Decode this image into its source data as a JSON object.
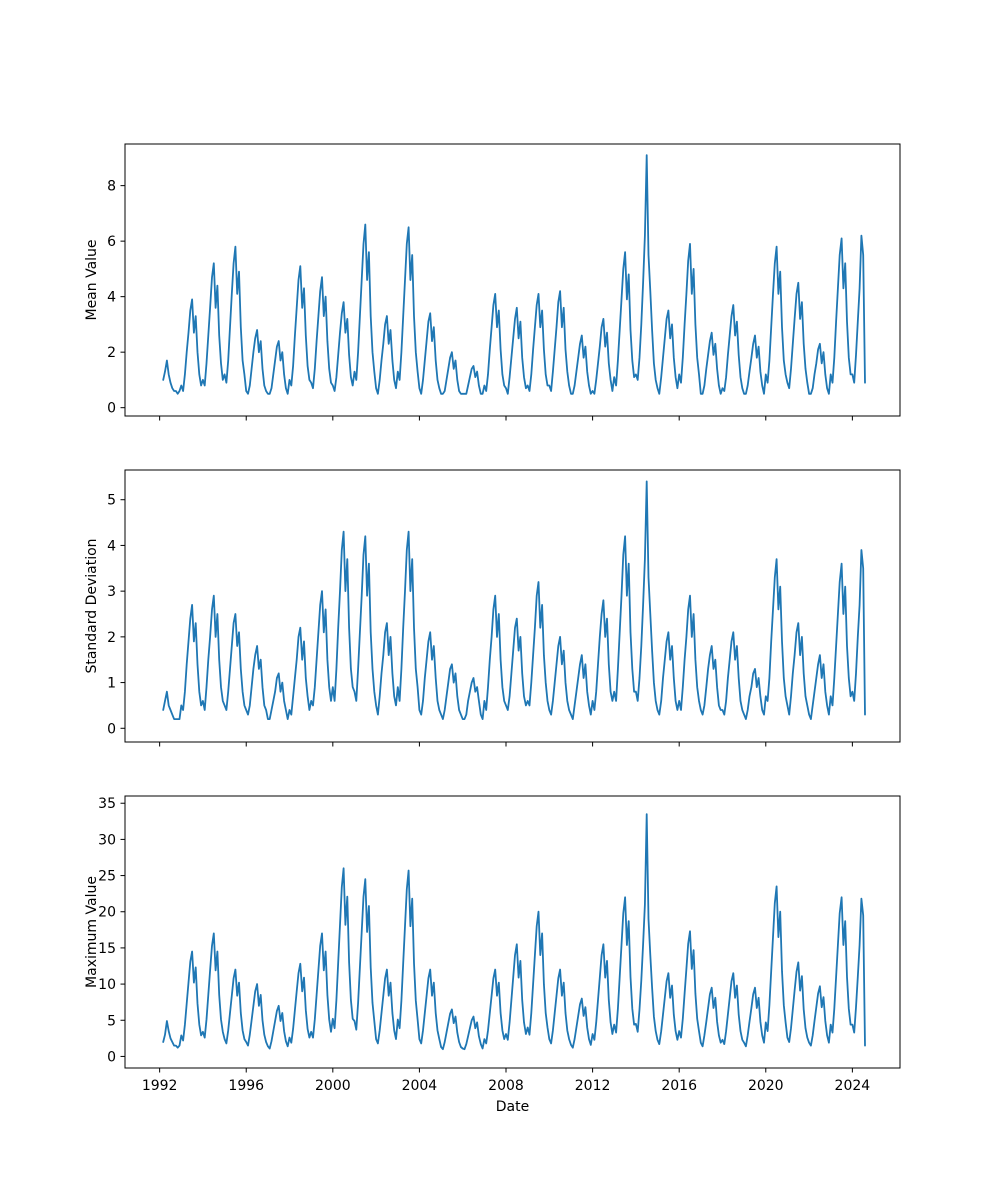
{
  "figure": {
    "background": "#ffffff",
    "line_color": "#1f77b4",
    "spine_color": "#000000",
    "text_color": "#000000"
  },
  "chart_data": [
    {
      "type": "line",
      "title": "",
      "ylabel": "Mean Value",
      "xlabel": "",
      "legend": null,
      "grid": false,
      "x_unit": "decimal_year_monthly",
      "x_start": 1992.1667,
      "x_step": 0.0833333,
      "xlim": [
        1990.4,
        2026.2
      ],
      "ylim": [
        -0.3,
        9.5
      ],
      "xticks": [
        1992,
        1996,
        2000,
        2004,
        2008,
        2012,
        2016,
        2020,
        2024
      ],
      "xtick_labels": [
        "1992",
        "1996",
        "2000",
        "2004",
        "2008",
        "2012",
        "2016",
        "2020",
        "2024"
      ],
      "show_x_tick_labels": false,
      "yticks": [
        0,
        2,
        4,
        6,
        8
      ],
      "ytick_labels": [
        "0",
        "2",
        "4",
        "6",
        "8"
      ],
      "values": [
        1.0,
        1.3,
        1.7,
        1.2,
        0.9,
        0.7,
        0.6,
        0.6,
        0.5,
        0.6,
        0.8,
        0.6,
        1.2,
        2.0,
        2.7,
        3.5,
        3.9,
        2.7,
        3.3,
        2.0,
        1.2,
        0.8,
        1.0,
        0.8,
        1.6,
        2.6,
        3.6,
        4.7,
        5.2,
        3.6,
        4.4,
        2.6,
        1.6,
        1.0,
        1.2,
        0.9,
        1.7,
        2.9,
        4.1,
        5.2,
        5.8,
        4.1,
        4.9,
        2.9,
        1.7,
        1.2,
        0.6,
        0.5,
        0.8,
        1.4,
        2.0,
        2.5,
        2.8,
        2.0,
        2.4,
        1.4,
        0.8,
        0.6,
        0.5,
        0.5,
        0.7,
        1.2,
        1.7,
        2.2,
        2.4,
        1.7,
        2.0,
        1.2,
        0.7,
        0.5,
        1.0,
        0.8,
        1.5,
        2.6,
        3.6,
        4.6,
        5.1,
        3.6,
        4.3,
        2.6,
        1.5,
        1.0,
        0.9,
        0.7,
        1.4,
        2.4,
        3.3,
        4.2,
        4.7,
        3.3,
        4.0,
        2.4,
        1.4,
        0.9,
        0.8,
        0.6,
        1.1,
        1.9,
        2.7,
        3.4,
        3.8,
        2.7,
        3.2,
        1.9,
        1.1,
        0.8,
        1.3,
        1.0,
        2.0,
        3.3,
        4.6,
        5.9,
        6.6,
        4.6,
        5.6,
        3.3,
        2.0,
        1.3,
        0.7,
        0.5,
        1.0,
        1.7,
        2.3,
        3.0,
        3.3,
        2.3,
        2.8,
        1.7,
        1.0,
        0.7,
        1.3,
        1.0,
        2.0,
        3.3,
        4.6,
        5.9,
        6.5,
        4.6,
        5.5,
        3.3,
        2.0,
        1.3,
        0.7,
        0.5,
        1.0,
        1.7,
        2.4,
        3.1,
        3.4,
        2.4,
        2.9,
        1.7,
        1.0,
        0.7,
        0.5,
        0.5,
        0.6,
        1.0,
        1.4,
        1.8,
        2.0,
        1.4,
        1.7,
        1.0,
        0.6,
        0.5,
        0.5,
        0.5,
        0.5,
        0.8,
        1.1,
        1.4,
        1.5,
        1.1,
        1.3,
        0.8,
        0.5,
        0.5,
        0.8,
        0.6,
        1.2,
        2.1,
        2.9,
        3.7,
        4.1,
        2.9,
        3.5,
        2.1,
        1.2,
        0.8,
        0.7,
        0.5,
        1.1,
        1.8,
        2.5,
        3.2,
        3.6,
        2.5,
        3.1,
        1.8,
        1.1,
        0.7,
        0.8,
        0.6,
        1.2,
        2.1,
        2.9,
        3.7,
        4.1,
        2.9,
        3.5,
        2.1,
        1.2,
        0.8,
        0.8,
        0.6,
        1.3,
        2.1,
        2.9,
        3.8,
        4.2,
        2.9,
        3.6,
        2.1,
        1.3,
        0.8,
        0.5,
        0.5,
        0.8,
        1.3,
        1.8,
        2.3,
        2.6,
        1.8,
        2.2,
        1.3,
        0.8,
        0.5,
        0.6,
        0.5,
        1.0,
        1.6,
        2.2,
        2.9,
        3.2,
        2.2,
        2.7,
        1.6,
        1.0,
        0.6,
        1.1,
        0.8,
        1.7,
        2.8,
        3.9,
        5.0,
        5.6,
        3.9,
        4.8,
        2.8,
        1.7,
        1.1,
        1.2,
        1.0,
        1.8,
        3.0,
        4.5,
        6.2,
        9.1,
        5.5,
        4.2,
        2.8,
        1.6,
        1.0,
        0.7,
        0.5,
        1.1,
        1.8,
        2.5,
        3.2,
        3.5,
        2.5,
        3.0,
        1.8,
        1.1,
        0.7,
        1.2,
        0.9,
        1.8,
        3.0,
        4.1,
        5.3,
        5.9,
        4.1,
        5.0,
        3.0,
        1.8,
        1.2,
        0.5,
        0.5,
        0.8,
        1.4,
        1.9,
        2.4,
        2.7,
        1.9,
        2.3,
        1.4,
        0.8,
        0.5,
        0.7,
        0.6,
        1.1,
        1.9,
        2.6,
        3.3,
        3.7,
        2.6,
        3.1,
        1.9,
        1.1,
        0.7,
        0.5,
        0.5,
        0.8,
        1.3,
        1.8,
        2.3,
        2.6,
        1.8,
        2.2,
        1.3,
        0.8,
        0.5,
        1.2,
        0.9,
        1.7,
        2.9,
        4.1,
        5.2,
        5.8,
        4.1,
        4.9,
        2.9,
        1.7,
        1.2,
        0.9,
        0.7,
        1.4,
        2.3,
        3.2,
        4.1,
        4.5,
        3.2,
        3.8,
        2.3,
        1.4,
        0.9,
        0.5,
        0.5,
        0.7,
        1.2,
        1.6,
        2.1,
        2.3,
        1.6,
        2.0,
        1.2,
        0.7,
        0.5,
        1.2,
        0.9,
        1.8,
        3.1,
        4.3,
        5.5,
        6.1,
        4.3,
        5.2,
        3.1,
        1.8,
        1.2,
        1.2,
        0.9,
        1.9,
        3.1,
        4.3,
        6.2,
        5.5,
        0.9
      ]
    },
    {
      "type": "line",
      "title": "",
      "ylabel": "Standard Deviation",
      "xlabel": "",
      "legend": null,
      "grid": false,
      "x_unit": "decimal_year_monthly",
      "x_start": 1992.1667,
      "x_step": 0.0833333,
      "xlim": [
        1990.4,
        2026.2
      ],
      "ylim": [
        -0.3,
        5.65
      ],
      "xticks": [
        1992,
        1996,
        2000,
        2004,
        2008,
        2012,
        2016,
        2020,
        2024
      ],
      "xtick_labels": [
        "1992",
        "1996",
        "2000",
        "2004",
        "2008",
        "2012",
        "2016",
        "2020",
        "2024"
      ],
      "show_x_tick_labels": false,
      "yticks": [
        0,
        1,
        2,
        3,
        4,
        5
      ],
      "ytick_labels": [
        "0",
        "1",
        "2",
        "3",
        "4",
        "5"
      ],
      "values": [
        0.4,
        0.6,
        0.8,
        0.5,
        0.4,
        0.3,
        0.2,
        0.2,
        0.2,
        0.2,
        0.5,
        0.4,
        0.8,
        1.4,
        1.9,
        2.4,
        2.7,
        1.9,
        2.3,
        1.4,
        0.8,
        0.5,
        0.6,
        0.4,
        0.9,
        1.5,
        2.0,
        2.6,
        2.9,
        2.0,
        2.5,
        1.5,
        0.9,
        0.6,
        0.5,
        0.4,
        0.8,
        1.3,
        1.8,
        2.3,
        2.5,
        1.8,
        2.1,
        1.3,
        0.8,
        0.5,
        0.4,
        0.3,
        0.5,
        0.9,
        1.3,
        1.6,
        1.8,
        1.3,
        1.5,
        0.9,
        0.5,
        0.4,
        0.2,
        0.2,
        0.4,
        0.6,
        0.8,
        1.1,
        1.2,
        0.8,
        1.0,
        0.6,
        0.4,
        0.2,
        0.4,
        0.3,
        0.7,
        1.1,
        1.5,
        2.0,
        2.2,
        1.5,
        1.9,
        1.1,
        0.7,
        0.4,
        0.6,
        0.5,
        0.9,
        1.5,
        2.1,
        2.7,
        3.0,
        2.1,
        2.6,
        1.5,
        0.9,
        0.6,
        0.9,
        0.6,
        1.3,
        2.2,
        3.0,
        3.9,
        4.3,
        3.0,
        3.7,
        2.2,
        1.3,
        0.9,
        0.8,
        0.6,
        1.3,
        2.1,
        2.9,
        3.8,
        4.2,
        2.9,
        3.6,
        2.1,
        1.3,
        0.8,
        0.5,
        0.3,
        0.7,
        1.2,
        1.6,
        2.1,
        2.3,
        1.6,
        2.0,
        1.2,
        0.7,
        0.5,
        0.9,
        0.6,
        1.3,
        2.2,
        3.0,
        3.9,
        4.3,
        3.0,
        3.7,
        2.2,
        1.3,
        0.9,
        0.4,
        0.3,
        0.6,
        1.1,
        1.5,
        1.9,
        2.1,
        1.5,
        1.8,
        1.1,
        0.6,
        0.4,
        0.3,
        0.2,
        0.4,
        0.7,
        1.0,
        1.3,
        1.4,
        1.0,
        1.2,
        0.7,
        0.4,
        0.3,
        0.2,
        0.2,
        0.3,
        0.6,
        0.8,
        1.0,
        1.1,
        0.8,
        0.9,
        0.6,
        0.3,
        0.2,
        0.6,
        0.4,
        0.9,
        1.5,
        2.0,
        2.6,
        2.9,
        2.0,
        2.5,
        1.5,
        0.9,
        0.6,
        0.5,
        0.4,
        0.7,
        1.2,
        1.7,
        2.2,
        2.4,
        1.7,
        2.0,
        1.2,
        0.7,
        0.5,
        0.6,
        0.5,
        1.0,
        1.6,
        2.2,
        2.9,
        3.2,
        2.2,
        2.7,
        1.6,
        1.0,
        0.6,
        0.4,
        0.3,
        0.6,
        1.0,
        1.4,
        1.8,
        2.0,
        1.4,
        1.7,
        1.0,
        0.6,
        0.4,
        0.3,
        0.2,
        0.5,
        0.8,
        1.1,
        1.4,
        1.6,
        1.1,
        1.4,
        0.8,
        0.5,
        0.3,
        0.6,
        0.4,
        0.8,
        1.4,
        2.0,
        2.5,
        2.8,
        2.0,
        2.4,
        1.4,
        0.8,
        0.6,
        0.8,
        0.6,
        1.3,
        2.1,
        2.9,
        3.8,
        4.2,
        2.9,
        3.6,
        2.1,
        1.3,
        0.8,
        0.8,
        0.6,
        1.1,
        1.8,
        2.7,
        3.7,
        5.4,
        3.3,
        2.5,
        1.7,
        1.0,
        0.6,
        0.4,
        0.3,
        0.6,
        1.1,
        1.5,
        1.9,
        2.1,
        1.5,
        1.8,
        1.1,
        0.6,
        0.4,
        0.6,
        0.4,
        0.9,
        1.5,
        2.0,
        2.6,
        2.9,
        2.0,
        2.5,
        1.5,
        0.9,
        0.6,
        0.4,
        0.3,
        0.5,
        0.9,
        1.3,
        1.6,
        1.8,
        1.3,
        1.5,
        0.9,
        0.5,
        0.4,
        0.4,
        0.3,
        0.6,
        1.1,
        1.5,
        1.9,
        2.1,
        1.5,
        1.8,
        1.1,
        0.6,
        0.4,
        0.3,
        0.2,
        0.4,
        0.7,
        0.9,
        1.2,
        1.3,
        0.9,
        1.1,
        0.7,
        0.4,
        0.3,
        0.7,
        0.6,
        1.1,
        1.9,
        2.6,
        3.3,
        3.7,
        2.6,
        3.1,
        1.9,
        1.1,
        0.7,
        0.5,
        0.3,
        0.7,
        1.2,
        1.6,
        2.1,
        2.3,
        1.6,
        2.0,
        1.2,
        0.7,
        0.5,
        0.3,
        0.2,
        0.5,
        0.8,
        1.1,
        1.4,
        1.6,
        1.1,
        1.4,
        0.8,
        0.5,
        0.3,
        0.7,
        0.5,
        1.1,
        1.8,
        2.5,
        3.2,
        3.6,
        2.5,
        3.1,
        1.8,
        1.1,
        0.7,
        0.8,
        0.6,
        1.2,
        2.0,
        2.7,
        3.9,
        3.5,
        0.3
      ]
    },
    {
      "type": "line",
      "title": "",
      "ylabel": "Maximum Value",
      "xlabel": "Date",
      "legend": null,
      "grid": false,
      "x_unit": "decimal_year_monthly",
      "x_start": 1992.1667,
      "x_step": 0.0833333,
      "xlim": [
        1990.4,
        2026.2
      ],
      "ylim": [
        -1.6,
        36.0
      ],
      "xticks": [
        1992,
        1996,
        2000,
        2004,
        2008,
        2012,
        2016,
        2020,
        2024
      ],
      "xtick_labels": [
        "1992",
        "1996",
        "2000",
        "2004",
        "2008",
        "2012",
        "2016",
        "2020",
        "2024"
      ],
      "show_x_tick_labels": true,
      "yticks": [
        0,
        5,
        10,
        15,
        20,
        25,
        30,
        35
      ],
      "ytick_labels": [
        "0",
        "5",
        "10",
        "15",
        "20",
        "25",
        "30",
        "35"
      ],
      "values": [
        2.0,
        3.0,
        4.9,
        3.5,
        2.5,
        2.0,
        1.5,
        1.5,
        1.2,
        1.5,
        2.9,
        2.2,
        4.4,
        7.3,
        10.2,
        13.1,
        14.5,
        10.2,
        12.3,
        7.3,
        4.4,
        2.9,
        3.4,
        2.6,
        5.1,
        8.5,
        11.9,
        15.3,
        17.0,
        11.9,
        14.5,
        8.5,
        5.1,
        3.4,
        2.4,
        1.8,
        3.6,
        6.0,
        8.4,
        10.8,
        12.0,
        8.4,
        10.2,
        6.0,
        3.6,
        2.4,
        2.0,
        1.5,
        3.0,
        5.0,
        7.0,
        9.0,
        10.0,
        7.0,
        8.5,
        5.0,
        3.0,
        2.0,
        1.4,
        1.1,
        2.1,
        3.5,
        4.9,
        6.3,
        7.0,
        4.9,
        6.0,
        3.5,
        2.1,
        1.4,
        2.6,
        1.9,
        3.8,
        6.4,
        9.0,
        11.5,
        12.8,
        9.0,
        10.9,
        6.4,
        3.8,
        2.6,
        3.4,
        2.6,
        5.1,
        8.5,
        11.9,
        15.3,
        17.0,
        11.9,
        14.5,
        8.5,
        5.1,
        3.4,
        5.2,
        3.9,
        7.8,
        13.0,
        18.2,
        23.4,
        26.0,
        18.2,
        22.1,
        13.0,
        7.8,
        5.2,
        4.9,
        3.7,
        7.4,
        12.3,
        17.2,
        22.1,
        24.5,
        17.2,
        20.8,
        12.3,
        7.4,
        4.9,
        2.4,
        1.8,
        3.6,
        6.0,
        8.4,
        10.8,
        12.0,
        8.4,
        10.2,
        6.0,
        3.6,
        2.4,
        5.1,
        3.9,
        7.7,
        12.9,
        18.0,
        23.1,
        25.7,
        18.0,
        21.8,
        12.9,
        7.7,
        5.1,
        2.4,
        1.8,
        3.6,
        6.0,
        8.4,
        10.8,
        12.0,
        8.4,
        10.2,
        6.0,
        3.6,
        2.4,
        1.3,
        1.0,
        2.0,
        3.3,
        4.6,
        5.9,
        6.5,
        4.6,
        5.5,
        3.3,
        2.0,
        1.3,
        1.1,
        1.0,
        1.7,
        2.8,
        3.9,
        5.0,
        5.5,
        3.9,
        4.7,
        2.8,
        1.7,
        1.1,
        2.4,
        1.8,
        3.6,
        6.0,
        8.4,
        10.8,
        12.0,
        8.4,
        10.2,
        6.0,
        3.6,
        2.4,
        3.1,
        2.3,
        4.7,
        7.8,
        10.9,
        14.0,
        15.5,
        10.9,
        13.2,
        7.8,
        4.7,
        3.1,
        4.0,
        3.0,
        6.0,
        10.0,
        14.0,
        18.0,
        20.0,
        14.0,
        17.0,
        10.0,
        6.0,
        4.0,
        2.4,
        1.8,
        3.6,
        6.0,
        8.4,
        10.8,
        12.0,
        8.4,
        10.2,
        6.0,
        3.6,
        2.4,
        1.6,
        1.2,
        2.4,
        4.0,
        5.6,
        7.2,
        8.0,
        5.6,
        6.8,
        4.0,
        2.4,
        1.6,
        3.1,
        2.3,
        4.7,
        7.8,
        10.9,
        14.0,
        15.5,
        10.9,
        13.2,
        7.8,
        4.7,
        3.1,
        4.4,
        3.3,
        6.6,
        11.0,
        15.4,
        19.8,
        22.0,
        15.4,
        18.7,
        11.0,
        6.6,
        4.4,
        4.5,
        3.4,
        6.5,
        10.5,
        15.5,
        21.0,
        33.5,
        19.0,
        14.0,
        9.5,
        5.5,
        3.5,
        2.3,
        1.7,
        3.5,
        5.8,
        8.1,
        10.4,
        11.5,
        8.1,
        9.8,
        5.8,
        3.5,
        2.3,
        3.5,
        2.6,
        5.2,
        8.7,
        12.1,
        15.6,
        17.3,
        12.1,
        14.7,
        8.7,
        5.2,
        3.5,
        1.9,
        1.4,
        2.9,
        4.8,
        6.7,
        8.6,
        9.5,
        6.7,
        8.1,
        4.8,
        2.9,
        1.9,
        2.3,
        1.7,
        3.5,
        5.8,
        8.1,
        10.4,
        11.5,
        8.1,
        9.8,
        5.8,
        3.5,
        2.3,
        1.9,
        1.4,
        2.9,
        4.8,
        6.7,
        8.6,
        9.5,
        6.7,
        8.1,
        4.8,
        2.9,
        1.9,
        4.7,
        3.5,
        7.1,
        11.8,
        16.5,
        21.2,
        23.5,
        16.5,
        20.0,
        11.8,
        7.1,
        4.7,
        2.6,
        2.0,
        3.9,
        6.5,
        9.1,
        11.7,
        13.0,
        9.1,
        11.1,
        6.5,
        3.9,
        2.6,
        1.9,
        1.5,
        2.9,
        4.9,
        6.8,
        8.7,
        9.7,
        6.8,
        8.2,
        4.9,
        2.9,
        1.9,
        4.4,
        3.3,
        6.6,
        11.0,
        15.4,
        19.8,
        22.0,
        15.4,
        18.7,
        11.0,
        6.6,
        4.4,
        4.4,
        3.3,
        6.8,
        11.0,
        15.4,
        21.8,
        19.5,
        1.5
      ]
    }
  ]
}
